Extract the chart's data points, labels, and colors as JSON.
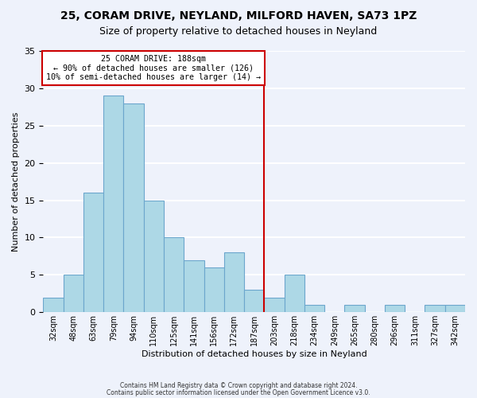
{
  "title": "25, CORAM DRIVE, NEYLAND, MILFORD HAVEN, SA73 1PZ",
  "subtitle": "Size of property relative to detached houses in Neyland",
  "xlabel": "Distribution of detached houses by size in Neyland",
  "ylabel": "Number of detached properties",
  "bin_labels": [
    "32sqm",
    "48sqm",
    "63sqm",
    "79sqm",
    "94sqm",
    "110sqm",
    "125sqm",
    "141sqm",
    "156sqm",
    "172sqm",
    "187sqm",
    "203sqm",
    "218sqm",
    "234sqm",
    "249sqm",
    "265sqm",
    "280sqm",
    "296sqm",
    "311sqm",
    "327sqm",
    "342sqm"
  ],
  "bar_heights": [
    2,
    5,
    16,
    29,
    28,
    15,
    10,
    7,
    6,
    8,
    3,
    2,
    5,
    1,
    0,
    1,
    0,
    1,
    0,
    1,
    1
  ],
  "bar_color": "#add8e6",
  "bar_edge_color": "#6ca6cd",
  "vline_x": 10.5,
  "vline_color": "#cc0000",
  "annotation_text": "25 CORAM DRIVE: 188sqm\n← 90% of detached houses are smaller (126)\n10% of semi-detached houses are larger (14) →",
  "annotation_box_color": "#ffffff",
  "annotation_box_edge": "#cc0000",
  "ylim": [
    0,
    35
  ],
  "yticks": [
    0,
    5,
    10,
    15,
    20,
    25,
    30,
    35
  ],
  "footer_line1": "Contains HM Land Registry data © Crown copyright and database right 2024.",
  "footer_line2": "Contains public sector information licensed under the Open Government Licence v3.0.",
  "bg_color": "#eef2fb",
  "grid_color": "#ffffff"
}
